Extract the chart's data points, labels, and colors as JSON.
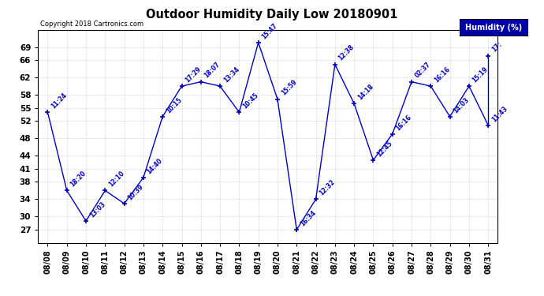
{
  "title": "Outdoor Humidity Daily Low 20180901",
  "copyright": "Copyright 2018 Cartronics.com",
  "background_color": "#ffffff",
  "line_color": "#0000bb",
  "text_color": "#0000bb",
  "grid_color": "#cccccc",
  "dates": [
    "08/08",
    "08/09",
    "08/10",
    "08/11",
    "08/12",
    "08/13",
    "08/14",
    "08/15",
    "08/16",
    "08/17",
    "08/18",
    "08/19",
    "08/20",
    "08/21",
    "08/22",
    "08/23",
    "08/24",
    "08/25",
    "08/26",
    "08/27",
    "08/28",
    "08/29",
    "08/30",
    "08/31"
  ],
  "values": [
    54,
    36,
    29,
    36,
    33,
    39,
    53,
    60,
    61,
    60,
    54,
    70,
    57,
    27,
    34,
    65,
    56,
    43,
    49,
    61,
    60,
    53,
    60,
    51
  ],
  "times_clean": [
    "11:24",
    "18:20",
    "13:03",
    "12:10",
    "10:39",
    "14:40",
    "10:15",
    "17:29",
    "18:07",
    "13:34",
    "10:45",
    "15:47",
    "15:59",
    "16:34",
    "12:32",
    "12:38",
    "14:18",
    "12:45",
    "16:16",
    "02:37",
    "16:16",
    "14:03",
    "15:19",
    "11:43"
  ],
  "extra_value": 67,
  "extra_time": "17:",
  "yticks": [
    27,
    30,
    34,
    38,
    41,
    44,
    48,
    52,
    55,
    58,
    62,
    66,
    69
  ],
  "ylim": [
    24,
    73
  ],
  "legend_text": "Humidity (%)",
  "legend_bg": "#0000aa",
  "legend_fg": "#ffffff"
}
